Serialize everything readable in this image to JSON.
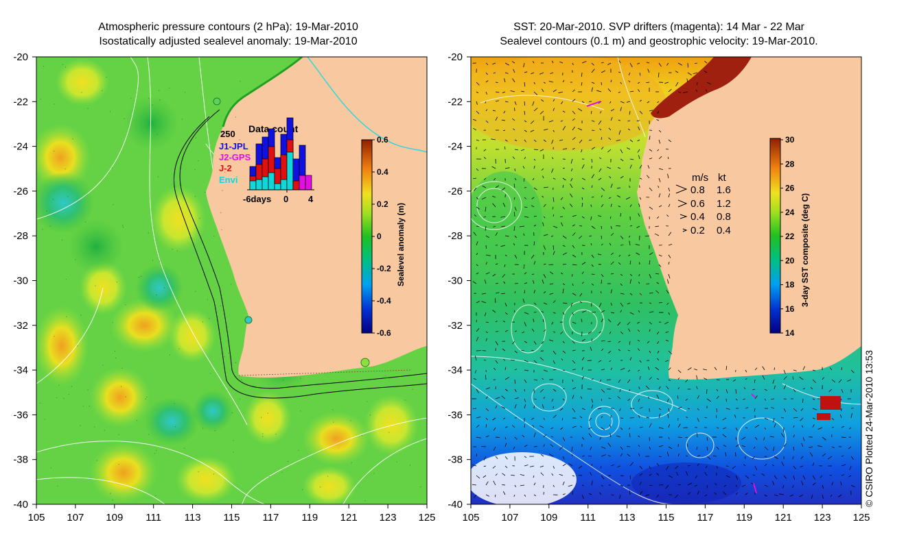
{
  "left_panel": {
    "title_line1": "Atmospheric pressure contours (2 hPa): 19-Mar-2010",
    "title_line2": "Isostatically adjusted sealevel anomaly: 19-Mar-2010",
    "x_ticks": [
      "105",
      "107",
      "109",
      "111",
      "113",
      "115",
      "117",
      "119",
      "121",
      "123",
      "125"
    ],
    "y_ticks": [
      "-20",
      "-22",
      "-24",
      "-26",
      "-28",
      "-30",
      "-32",
      "-34",
      "-36",
      "-38",
      "-40"
    ],
    "colorbar": {
      "label": "Sealevel anomaly (m)",
      "ticks": [
        "0.6",
        "0.4",
        "0.2",
        "0",
        "-0.2",
        "-0.4",
        "-0.6"
      ]
    },
    "data_count": {
      "title": "Data count",
      "max_label": "250",
      "legend": [
        {
          "name": "J1-JPL",
          "color": "#1010e0"
        },
        {
          "name": "J2-GPS",
          "color": "#e010e0"
        },
        {
          "name": "J-2",
          "color": "#e01010"
        },
        {
          "name": "Envi",
          "color": "#10d8d8"
        }
      ],
      "axis_labels": [
        "-6days",
        "0",
        "4"
      ]
    }
  },
  "right_panel": {
    "title_line1": "SST: 20-Mar-2010. SVP drifters (magenta): 14 Mar - 22 Mar",
    "title_line2": "Sealevel contours (0.1 m) and geostrophic velocity: 19-Mar-2010.",
    "x_ticks": [
      "105",
      "107",
      "109",
      "111",
      "113",
      "115",
      "117",
      "119",
      "121",
      "123",
      "125"
    ],
    "y_ticks": [
      "-20",
      "-22",
      "-24",
      "-26",
      "-28",
      "-30",
      "-32",
      "-34",
      "-36",
      "-38",
      "-40"
    ],
    "colorbar": {
      "label": "3-day SST composite (deg C)",
      "ticks": [
        "30",
        "28",
        "26",
        "24",
        "22",
        "20",
        "18",
        "16",
        "14"
      ]
    },
    "velocity_key": {
      "header_ms": "m/s",
      "header_kt": "kt",
      "rows": [
        {
          "ms": "0.8",
          "kt": "1.6"
        },
        {
          "ms": "0.6",
          "kt": "1.2"
        },
        {
          "ms": "0.4",
          "kt": "0.8"
        },
        {
          "ms": "0.2",
          "kt": "0.4"
        }
      ]
    }
  },
  "footer": {
    "copyright": "© CSIRO Plotted 24-Mar-2010 13:53"
  }
}
